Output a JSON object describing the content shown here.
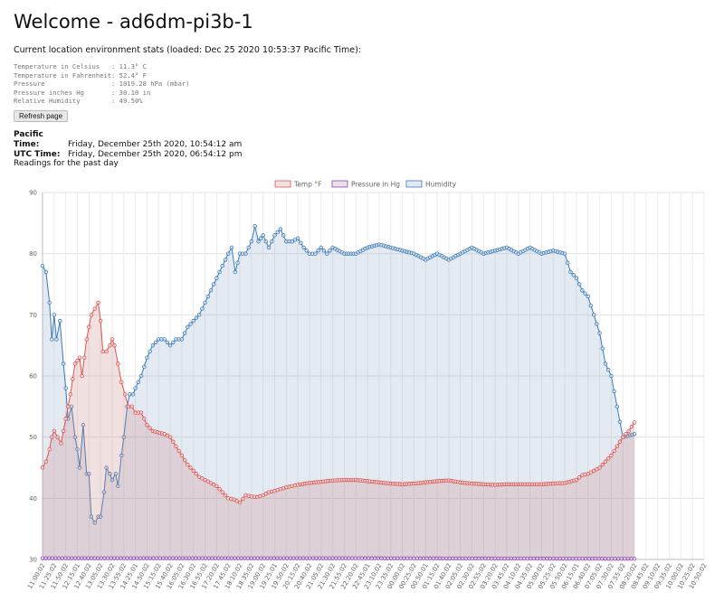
{
  "page": {
    "title": "Welcome - ad6dm-pi3b-1",
    "loaded_line": "Current location environment stats (loaded: Dec 25 2020 10:53:37 Pacific Time):",
    "stats": [
      {
        "label": "Temperature in Celsius",
        "value": ": 11.3° C"
      },
      {
        "label": "Temperature in Fahrenheit",
        "value": ": 52.4° F"
      },
      {
        "label": "Pressure",
        "value": ": 1019.28 hPa (mbar)"
      },
      {
        "label": "Pressure inches Hg",
        "value": ": 30.10 in"
      },
      {
        "label": "Relative Humidity",
        "value": ": 49.50%"
      }
    ],
    "refresh_label": "Refresh page",
    "pacific_label": "Pacific Time:",
    "pacific_value": "Friday, December 25th 2020, 10:54:12 am",
    "utc_label": "UTC Time:",
    "utc_value": "Friday, December 25th 2020, 06:54:12 pm",
    "readings_label": "Readings for the past day"
  },
  "chart_data": {
    "type": "line",
    "title": "",
    "xlabel": "",
    "ylabel": "",
    "ylim": [
      30,
      90
    ],
    "yticks": [
      30,
      40,
      50,
      60,
      70,
      80,
      90
    ],
    "grid": true,
    "legend_placement": "top-center",
    "x_tick_labels": [
      "11:00:02",
      "11:25:02",
      "11:50:02",
      "12:15:01",
      "12:40:02",
      "13:05:02",
      "13:30:02",
      "13:55:02",
      "14:25:01",
      "14:50:02",
      "15:15:02",
      "15:40:02",
      "16:05:02",
      "16:30:02",
      "16:55:02",
      "17:20:02",
      "17:45:02",
      "18:10:02",
      "18:35:02",
      "19:00:02",
      "19:25:01",
      "19:50:02",
      "20:15:02",
      "20:40:02",
      "21:05:02",
      "21:30:02",
      "21:55:02",
      "22:20:02",
      "22:45:01",
      "23:10:02",
      "23:35:02",
      "00:00:02",
      "00:25:02",
      "00:50:01",
      "01:15:02",
      "01:40:02",
      "02:05:02",
      "02:30:02",
      "02:55:02",
      "03:20:02",
      "03:45:02",
      "04:10:02",
      "04:35:02",
      "05:00:02",
      "05:25:02",
      "05:50:02",
      "06:15:01",
      "06:40:02",
      "07:05:02",
      "07:30:02",
      "07:55:02",
      "08:20:02",
      "08:45:02",
      "09:10:02",
      "09:35:02",
      "10:00:02",
      "10:25:02",
      "10:50:02"
    ],
    "series": [
      {
        "name": "Temp °F",
        "color": "#d9534f",
        "fill": "rgba(200,130,130,0.25)",
        "points": [
          [
            0,
            45
          ],
          [
            0.3,
            46
          ],
          [
            0.6,
            48
          ],
          [
            0.8,
            50
          ],
          [
            1.0,
            51
          ],
          [
            1.3,
            50
          ],
          [
            1.6,
            49
          ],
          [
            2.0,
            53
          ],
          [
            2.4,
            57
          ],
          [
            2.8,
            62
          ],
          [
            3.2,
            63
          ],
          [
            3.4,
            60
          ],
          [
            3.8,
            66
          ],
          [
            4.2,
            70
          ],
          [
            4.5,
            71
          ],
          [
            4.8,
            72
          ],
          [
            5.0,
            69
          ],
          [
            5.2,
            64
          ],
          [
            5.5,
            64
          ],
          [
            5.8,
            65
          ],
          [
            6.0,
            66
          ],
          [
            6.2,
            65
          ],
          [
            6.5,
            62
          ],
          [
            6.8,
            59
          ],
          [
            7.1,
            57
          ],
          [
            7.4,
            55
          ],
          [
            7.7,
            55
          ],
          [
            8.0,
            54
          ],
          [
            8.5,
            54
          ],
          [
            9.0,
            52
          ],
          [
            9.5,
            51
          ],
          [
            10.5,
            50.5
          ],
          [
            11,
            50
          ],
          [
            11.5,
            48.5
          ],
          [
            12,
            47
          ],
          [
            12.5,
            45.5
          ],
          [
            13,
            44.5
          ],
          [
            13.5,
            43.5
          ],
          [
            14,
            43
          ],
          [
            14.5,
            42.5
          ],
          [
            15,
            42
          ],
          [
            15.5,
            41
          ],
          [
            16,
            40
          ],
          [
            16.5,
            39.8
          ],
          [
            17,
            39.3
          ],
          [
            17.5,
            40.5
          ],
          [
            18,
            40.3
          ],
          [
            18.5,
            40.2
          ],
          [
            19,
            40.5
          ],
          [
            19.5,
            41
          ],
          [
            20,
            41.2
          ],
          [
            20.5,
            41.5
          ],
          [
            21,
            41.8
          ],
          [
            21.5,
            42
          ],
          [
            22,
            42.2
          ],
          [
            23,
            42.5
          ],
          [
            24,
            42.7
          ],
          [
            25,
            42.9
          ],
          [
            26,
            43
          ],
          [
            27,
            43
          ],
          [
            28,
            42.8
          ],
          [
            29,
            42.6
          ],
          [
            30,
            42.4
          ],
          [
            31,
            42.3
          ],
          [
            32,
            42.4
          ],
          [
            33,
            42.6
          ],
          [
            34,
            42.8
          ],
          [
            35,
            42.9
          ],
          [
            36,
            42.6
          ],
          [
            37,
            42.4
          ],
          [
            38,
            42.3
          ],
          [
            39,
            42.2
          ],
          [
            40,
            42.3
          ],
          [
            41,
            42.3
          ],
          [
            42,
            42.3
          ],
          [
            43,
            42.3
          ],
          [
            44,
            42.4
          ],
          [
            45,
            42.5
          ],
          [
            46,
            43
          ],
          [
            46.5,
            43.8
          ],
          [
            47,
            44
          ],
          [
            47.5,
            44.5
          ],
          [
            48,
            45
          ],
          [
            48.5,
            46
          ],
          [
            49,
            47
          ],
          [
            49.5,
            48.5
          ],
          [
            50,
            50
          ],
          [
            50.5,
            51
          ],
          [
            51,
            52.4
          ]
        ]
      },
      {
        "name": "Pressure in Hg",
        "color": "#8e44ad",
        "fill": "rgba(160,140,170,0.25)",
        "points": [
          [
            0,
            30.2
          ],
          [
            25,
            30.2
          ],
          [
            51,
            30.1
          ]
        ]
      },
      {
        "name": "Humidity",
        "color": "#3a79b5",
        "fill": "rgba(120,150,190,0.2)",
        "points": [
          [
            0,
            78
          ],
          [
            0.3,
            77
          ],
          [
            0.6,
            72
          ],
          [
            0.8,
            66
          ],
          [
            1.0,
            70
          ],
          [
            1.2,
            66
          ],
          [
            1.5,
            69
          ],
          [
            1.8,
            62
          ],
          [
            2.0,
            58
          ],
          [
            2.2,
            53
          ],
          [
            2.5,
            55
          ],
          [
            2.8,
            50
          ],
          [
            3.0,
            48
          ],
          [
            3.2,
            45
          ],
          [
            3.5,
            52
          ],
          [
            3.8,
            44
          ],
          [
            4.0,
            44
          ],
          [
            4.2,
            37
          ],
          [
            4.5,
            36
          ],
          [
            4.8,
            37
          ],
          [
            5.0,
            37
          ],
          [
            5.3,
            41
          ],
          [
            5.5,
            45
          ],
          [
            5.8,
            44
          ],
          [
            6.0,
            43
          ],
          [
            6.3,
            44
          ],
          [
            6.5,
            42
          ],
          [
            6.8,
            47
          ],
          [
            7.0,
            50
          ],
          [
            7.3,
            55
          ],
          [
            7.5,
            57
          ],
          [
            7.8,
            57
          ],
          [
            8.0,
            58
          ],
          [
            8.5,
            60
          ],
          [
            9.0,
            63
          ],
          [
            9.5,
            65
          ],
          [
            10,
            66
          ],
          [
            10.5,
            66
          ],
          [
            11,
            65
          ],
          [
            11.5,
            66
          ],
          [
            12,
            66
          ],
          [
            12.5,
            68
          ],
          [
            13,
            69
          ],
          [
            13.5,
            70
          ],
          [
            14,
            72
          ],
          [
            14.5,
            74
          ],
          [
            15,
            76
          ],
          [
            15.5,
            78
          ],
          [
            16,
            80
          ],
          [
            16.3,
            81
          ],
          [
            16.6,
            77
          ],
          [
            17,
            80
          ],
          [
            17.5,
            80
          ],
          [
            18,
            82
          ],
          [
            18.3,
            84.5
          ],
          [
            18.6,
            82
          ],
          [
            19,
            83
          ],
          [
            19.5,
            81
          ],
          [
            20,
            83
          ],
          [
            20.5,
            84
          ],
          [
            21,
            82
          ],
          [
            21.5,
            82
          ],
          [
            22,
            82.5
          ],
          [
            22.5,
            81
          ],
          [
            23,
            80
          ],
          [
            23.5,
            80
          ],
          [
            24,
            81
          ],
          [
            24.5,
            80
          ],
          [
            25,
            81
          ],
          [
            26,
            80
          ],
          [
            27,
            80
          ],
          [
            28,
            81
          ],
          [
            29,
            81.5
          ],
          [
            30,
            81
          ],
          [
            31,
            80.5
          ],
          [
            32,
            80
          ],
          [
            33,
            79
          ],
          [
            34,
            80
          ],
          [
            35,
            79
          ],
          [
            36,
            80
          ],
          [
            37,
            81
          ],
          [
            38,
            80
          ],
          [
            39,
            80.5
          ],
          [
            40,
            81
          ],
          [
            41,
            80
          ],
          [
            42,
            81
          ],
          [
            43,
            80
          ],
          [
            44,
            80.5
          ],
          [
            45,
            80
          ],
          [
            45.5,
            77
          ],
          [
            46,
            76
          ],
          [
            46.5,
            74
          ],
          [
            47,
            73
          ],
          [
            47.5,
            70
          ],
          [
            48,
            67
          ],
          [
            48.5,
            62
          ],
          [
            49,
            60
          ],
          [
            49.5,
            55
          ],
          [
            50,
            50
          ],
          [
            51,
            50.5
          ]
        ]
      }
    ]
  }
}
